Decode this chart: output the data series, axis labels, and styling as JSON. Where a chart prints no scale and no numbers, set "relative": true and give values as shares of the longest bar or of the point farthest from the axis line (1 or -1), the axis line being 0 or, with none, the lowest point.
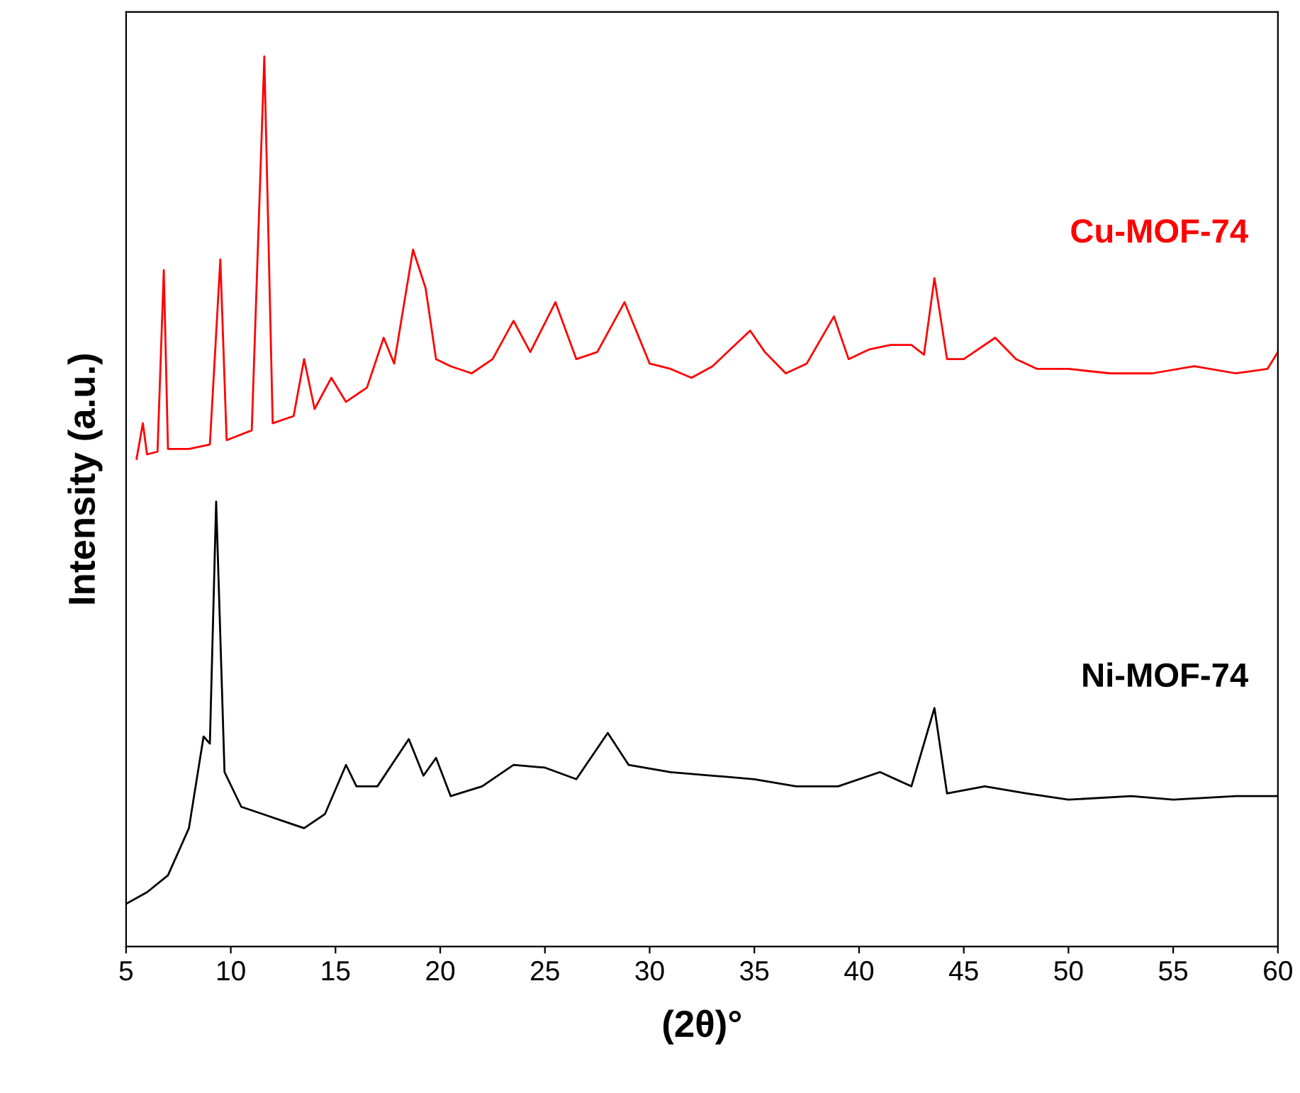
{
  "chart_data": {
    "type": "line",
    "xlabel": "(2θ)°",
    "ylabel": "Intensity (a.u.)",
    "relative": true,
    "legend": false,
    "grid": false,
    "marker": "none",
    "line_style": "solid",
    "xlim": [
      5,
      60
    ],
    "xticks": [
      5,
      10,
      15,
      20,
      25,
      30,
      35,
      40,
      45,
      50,
      55,
      60
    ],
    "series": [
      {
        "name": "Cu-MOF-74",
        "color": "#ff0000",
        "x": [
          5.5,
          5.8,
          6.0,
          6.5,
          6.8,
          7.0,
          8.0,
          9.0,
          9.5,
          9.8,
          11.0,
          11.6,
          12.0,
          13.0,
          13.5,
          14.0,
          14.8,
          15.5,
          16.5,
          17.3,
          17.8,
          18.7,
          19.3,
          19.8,
          20.5,
          21.5,
          22.5,
          23.5,
          24.3,
          25.5,
          26.5,
          27.5,
          28.8,
          30,
          31,
          32,
          33,
          34.8,
          35.5,
          36.5,
          37.5,
          38.8,
          39.5,
          40.5,
          41.5,
          42.5,
          43.1,
          43.6,
          44.2,
          45,
          46.5,
          47.5,
          48.5,
          50,
          52,
          54,
          56,
          58,
          59.5,
          60
        ],
        "values": [
          0.548,
          0.588,
          0.553,
          0.556,
          0.76,
          0.559,
          0.559,
          0.564,
          0.772,
          0.569,
          0.58,
          1.0,
          0.588,
          0.596,
          0.66,
          0.604,
          0.639,
          0.612,
          0.628,
          0.684,
          0.655,
          0.783,
          0.74,
          0.66,
          0.652,
          0.644,
          0.66,
          0.703,
          0.668,
          0.724,
          0.66,
          0.668,
          0.724,
          0.655,
          0.649,
          0.639,
          0.652,
          0.692,
          0.668,
          0.644,
          0.655,
          0.708,
          0.66,
          0.671,
          0.676,
          0.676,
          0.665,
          0.751,
          0.66,
          0.66,
          0.684,
          0.66,
          0.649,
          0.649,
          0.644,
          0.644,
          0.652,
          0.644,
          0.649,
          0.668
        ]
      },
      {
        "name": "Ni-MOF-74",
        "color": "#000000",
        "x": [
          5,
          6,
          7,
          8,
          8.7,
          9.0,
          9.3,
          9.7,
          10.5,
          11.5,
          12.5,
          13.5,
          14.5,
          15.5,
          16.0,
          17,
          18.5,
          19.2,
          19.8,
          20.5,
          22,
          23.5,
          25,
          26.5,
          28,
          29,
          31,
          33,
          35,
          37,
          39,
          41,
          42.5,
          43.6,
          44.2,
          46,
          48,
          50,
          53,
          55,
          58,
          60
        ],
        "values": [
          0.048,
          0.061,
          0.08,
          0.133,
          0.236,
          0.228,
          0.5,
          0.196,
          0.157,
          0.149,
          0.141,
          0.133,
          0.149,
          0.204,
          0.18,
          0.18,
          0.233,
          0.192,
          0.212,
          0.169,
          0.18,
          0.204,
          0.201,
          0.188,
          0.24,
          0.204,
          0.196,
          0.192,
          0.188,
          0.18,
          0.18,
          0.196,
          0.18,
          0.268,
          0.172,
          0.18,
          0.172,
          0.165,
          0.169,
          0.165,
          0.169,
          0.169
        ]
      }
    ]
  }
}
